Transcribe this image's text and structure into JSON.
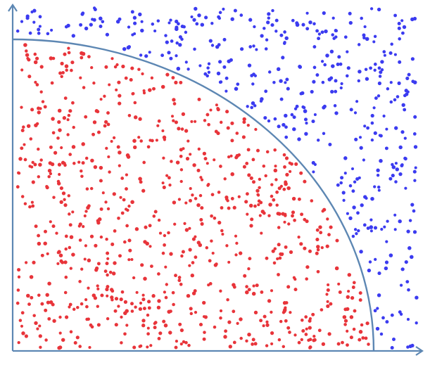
{
  "chart_data": {
    "type": "scatter",
    "title": "",
    "xlabel": "",
    "ylabel": "",
    "xlim": [
      0,
      1.15
    ],
    "ylim": [
      0,
      1.0
    ],
    "grid": false,
    "legend": "none",
    "boundary": {
      "shape": "quarter-circle",
      "radius": 1.0,
      "center": [
        0,
        0
      ]
    },
    "series": [
      {
        "key": "inside",
        "color": "#e8343a",
        "count": 800
      },
      {
        "key": "outside",
        "color": "#3b3bf0",
        "count": 420
      }
    ]
  },
  "colors": {
    "axis": "#5d87b3",
    "inside_points": "#e8343a",
    "outside_points": "#3b3bf0",
    "background": "#ffffff"
  }
}
